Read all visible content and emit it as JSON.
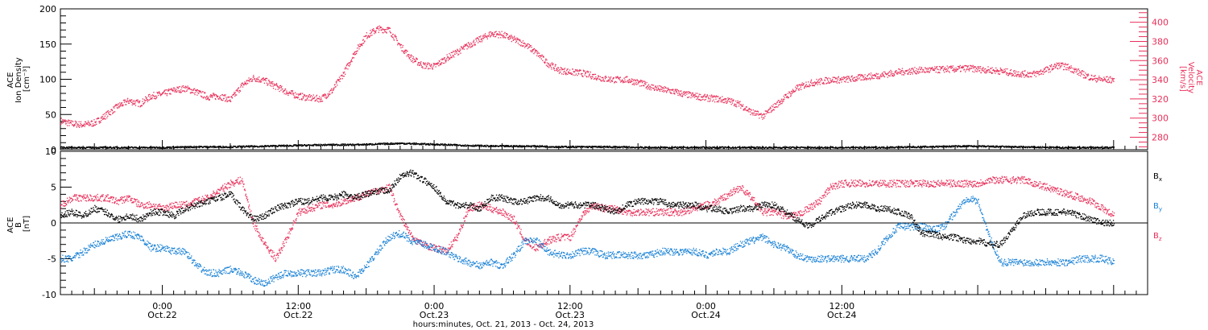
{
  "chart_data": [
    {
      "type": "scatter",
      "panel": "top",
      "ylabel_left": [
        "ACE",
        "Ion Density",
        "[cm⁻³]"
      ],
      "ylabel_right": [
        "ACE",
        "Velocity",
        "[km/s]"
      ],
      "y_left_ticks": [
        "0",
        "50",
        "100",
        "150",
        "200"
      ],
      "y_left_range": [
        0,
        200
      ],
      "y_right_ticks": [
        "280",
        "300",
        "320",
        "340",
        "360",
        "380",
        "400"
      ],
      "y_right_range": [
        267,
        414
      ],
      "x_range_hours": [
        0,
        96
      ],
      "colors": {
        "density": "#000000",
        "velocity": "#e8305a"
      },
      "series": [
        {
          "axis": "left",
          "color": "#000000",
          "x_hours": [
            0,
            3,
            6,
            9,
            12,
            15,
            18,
            21,
            24,
            26,
            28,
            30,
            32,
            34,
            36,
            38,
            40,
            42,
            44,
            46,
            48,
            52,
            56,
            60,
            64,
            68,
            72,
            76,
            80,
            84,
            88,
            92,
            93
          ],
          "values": [
            3,
            3,
            3,
            3,
            4,
            4,
            5,
            6,
            7,
            7,
            8,
            9,
            8,
            7,
            6,
            5,
            5,
            5,
            4,
            4,
            4,
            3,
            3,
            3,
            3,
            3,
            3,
            4,
            5,
            4,
            3,
            3,
            3
          ]
        },
        {
          "axis": "right",
          "color": "#e8305a",
          "x_hours": [
            0,
            1,
            2,
            3,
            4,
            5,
            6,
            7,
            8,
            9,
            10,
            11,
            12,
            13,
            14,
            15,
            16,
            17,
            18,
            19,
            20,
            21,
            22,
            23,
            24,
            25,
            26,
            27,
            28,
            29,
            30,
            31,
            32,
            33,
            34,
            35,
            36,
            37,
            38,
            39,
            40,
            41,
            42,
            43,
            44,
            45,
            46,
            47,
            48,
            49,
            50,
            51,
            52,
            53,
            54,
            55,
            56,
            57,
            58,
            59,
            60,
            61,
            62,
            63,
            64,
            65,
            66,
            67,
            68,
            69,
            70,
            71,
            72,
            73,
            74,
            75,
            76,
            77,
            78,
            79,
            80,
            81,
            82,
            83,
            84,
            85,
            86,
            87,
            88,
            89,
            90,
            91,
            92,
            93
          ],
          "values": [
            297,
            294,
            293,
            295,
            303,
            312,
            318,
            315,
            323,
            325,
            329,
            331,
            327,
            322,
            323,
            319,
            334,
            342,
            339,
            333,
            327,
            323,
            321,
            320,
            329,
            347,
            369,
            386,
            393,
            392,
            375,
            362,
            355,
            354,
            362,
            369,
            376,
            382,
            388,
            387,
            382,
            377,
            368,
            357,
            350,
            348,
            347,
            344,
            341,
            340,
            340,
            337,
            333,
            330,
            328,
            325,
            323,
            321,
            320,
            318,
            314,
            306,
            302,
            312,
            322,
            331,
            336,
            338,
            340,
            340,
            341,
            343,
            344,
            346,
            348,
            349,
            350,
            350,
            351,
            351,
            352,
            351,
            350,
            349,
            347,
            346,
            346,
            350,
            355,
            353,
            347,
            342,
            340,
            340
          ]
        }
      ]
    },
    {
      "type": "scatter",
      "panel": "bottom",
      "ylabel": [
        "ACE",
        "B",
        "[nT]"
      ],
      "y_ticks": [
        "-10",
        "-5",
        "0",
        "5",
        "10"
      ],
      "y_range": [
        -10,
        10
      ],
      "x_range_hours": [
        0,
        96
      ],
      "zero_line": true,
      "x_ticks": [
        {
          "hours": 9,
          "time": "0:00",
          "date": "Oct.22"
        },
        {
          "hours": 21,
          "time": "12:00",
          "date": "Oct.22"
        },
        {
          "hours": 33,
          "time": "0:00",
          "date": "Oct.23"
        },
        {
          "hours": 45,
          "time": "12:00",
          "date": "Oct.23"
        },
        {
          "hours": 57,
          "time": "0:00",
          "date": "Oct.24"
        },
        {
          "hours": 69,
          "time": "12:00",
          "date": "Oct.24"
        }
      ],
      "xlabel": "hours:minutes, Oct. 21, 2013 - Oct. 24, 2013",
      "legend": [
        {
          "base": "B",
          "sub": "x",
          "color": "#000000"
        },
        {
          "base": "B",
          "sub": "y",
          "color": "#1a82d6"
        },
        {
          "base": "B",
          "sub": "z",
          "color": "#e8305a"
        }
      ],
      "series": [
        {
          "name": "Bx",
          "color": "#000000",
          "x_hours": [
            0,
            1,
            2,
            3,
            4,
            5,
            6,
            7,
            8,
            9,
            10,
            11,
            12,
            13,
            14,
            15,
            16,
            17,
            18,
            19,
            20,
            21,
            22,
            23,
            24,
            25,
            26,
            27,
            28,
            29,
            30,
            31,
            32,
            33,
            34,
            35,
            36,
            37,
            38,
            39,
            40,
            41,
            42,
            43,
            44,
            45,
            46,
            47,
            48,
            49,
            50,
            51,
            52,
            53,
            54,
            55,
            56,
            57,
            58,
            59,
            60,
            61,
            62,
            63,
            64,
            65,
            66,
            67,
            68,
            69,
            70,
            71,
            72,
            73,
            74,
            75,
            76,
            77,
            78,
            79,
            80,
            81,
            82,
            83,
            84,
            85,
            86,
            87,
            88,
            89,
            90,
            91,
            92,
            93
          ],
          "values": [
            1.0,
            1.5,
            1.0,
            2.0,
            1.5,
            0.5,
            1.0,
            0.5,
            1.5,
            1.5,
            1.0,
            2.0,
            2.5,
            3.0,
            3.5,
            4.0,
            2.0,
            0.5,
            1.0,
            2.0,
            2.5,
            3.0,
            3.0,
            3.5,
            3.5,
            4.0,
            3.5,
            4.0,
            4.5,
            4.5,
            6.5,
            7.0,
            6.0,
            5.0,
            3.0,
            2.5,
            2.5,
            2.0,
            3.5,
            3.5,
            3.0,
            3.0,
            3.5,
            3.5,
            2.5,
            2.5,
            2.5,
            2.5,
            2.0,
            1.5,
            2.5,
            3.0,
            3.0,
            3.0,
            2.5,
            2.5,
            2.5,
            2.0,
            2.0,
            1.5,
            2.0,
            2.0,
            2.5,
            2.5,
            1.5,
            0.5,
            -0.5,
            0.5,
            1.5,
            2.0,
            2.5,
            2.5,
            2.0,
            2.0,
            1.5,
            1.0,
            -1.5,
            -1.5,
            -2.0,
            -2.0,
            -2.5,
            -2.5,
            -3.0,
            -3.0,
            -1.0,
            1.0,
            1.5,
            1.5,
            1.5,
            1.5,
            1.0,
            0.5,
            0.0,
            0.0
          ]
        },
        {
          "name": "By",
          "color": "#1a82d6",
          "x_hours": [
            0,
            1,
            2,
            3,
            4,
            5,
            6,
            7,
            8,
            9,
            10,
            11,
            12,
            13,
            14,
            15,
            16,
            17,
            18,
            19,
            20,
            21,
            22,
            23,
            24,
            25,
            26,
            27,
            28,
            29,
            30,
            31,
            32,
            33,
            34,
            35,
            36,
            37,
            38,
            39,
            40,
            41,
            42,
            43,
            44,
            45,
            46,
            47,
            48,
            49,
            50,
            51,
            52,
            53,
            54,
            55,
            56,
            57,
            58,
            59,
            60,
            61,
            62,
            63,
            64,
            65,
            66,
            67,
            68,
            69,
            70,
            71,
            72,
            73,
            74,
            75,
            76,
            77,
            78,
            79,
            80,
            81,
            82,
            83,
            84,
            85,
            86,
            87,
            88,
            89,
            90,
            91,
            92,
            93
          ],
          "values": [
            -5.0,
            -5.0,
            -4.0,
            -3.0,
            -2.5,
            -2.0,
            -1.5,
            -2.0,
            -3.5,
            -3.5,
            -4.0,
            -4.0,
            -6.0,
            -7.0,
            -7.0,
            -6.5,
            -7.0,
            -8.0,
            -8.5,
            -7.5,
            -7.0,
            -7.0,
            -7.0,
            -7.0,
            -6.5,
            -6.5,
            -7.5,
            -6.0,
            -4.0,
            -2.0,
            -1.5,
            -2.5,
            -3.0,
            -3.5,
            -4.0,
            -5.0,
            -5.5,
            -6.0,
            -5.5,
            -6.0,
            -4.5,
            -2.5,
            -2.5,
            -4.0,
            -4.5,
            -4.5,
            -4.0,
            -4.0,
            -4.5,
            -4.5,
            -4.5,
            -4.5,
            -4.5,
            -4.0,
            -4.0,
            -4.0,
            -4.0,
            -4.5,
            -4.0,
            -4.0,
            -3.0,
            -2.5,
            -2.0,
            -3.0,
            -3.5,
            -4.5,
            -5.0,
            -5.0,
            -5.0,
            -5.0,
            -5.0,
            -5.0,
            -4.0,
            -2.0,
            -0.5,
            -0.5,
            -0.5,
            -1.0,
            -0.5,
            1.5,
            3.5,
            3.0,
            -2.0,
            -5.5,
            -5.5,
            -5.5,
            -5.5,
            -5.5,
            -5.5,
            -5.5,
            -5.0,
            -5.0,
            -5.0,
            -5.5
          ]
        },
        {
          "name": "Bz",
          "color": "#e8305a",
          "x_hours": [
            0,
            1,
            2,
            3,
            4,
            5,
            6,
            7,
            8,
            9,
            10,
            11,
            12,
            13,
            14,
            15,
            16,
            17,
            18,
            19,
            20,
            21,
            22,
            23,
            24,
            25,
            26,
            27,
            28,
            29,
            30,
            31,
            32,
            33,
            34,
            35,
            36,
            37,
            38,
            39,
            40,
            41,
            42,
            43,
            44,
            45,
            46,
            47,
            48,
            49,
            50,
            51,
            52,
            53,
            54,
            55,
            56,
            57,
            58,
            59,
            60,
            61,
            62,
            63,
            64,
            65,
            66,
            67,
            68,
            69,
            70,
            71,
            72,
            73,
            74,
            75,
            76,
            77,
            78,
            79,
            80,
            81,
            82,
            83,
            84,
            85,
            86,
            87,
            88,
            89,
            90,
            91,
            92,
            93
          ],
          "values": [
            2.5,
            3.5,
            3.5,
            3.5,
            3.5,
            3.0,
            3.5,
            2.5,
            2.5,
            2.0,
            2.5,
            2.5,
            3.0,
            3.5,
            4.5,
            5.5,
            6.0,
            0.0,
            -3.0,
            -5.0,
            -2.0,
            1.5,
            2.0,
            2.5,
            2.5,
            3.0,
            3.5,
            4.0,
            4.5,
            5.0,
            1.0,
            -2.0,
            -3.0,
            -3.5,
            -4.0,
            -2.0,
            2.0,
            2.5,
            2.0,
            1.5,
            0.5,
            -2.5,
            -3.5,
            -2.5,
            -2.0,
            -2.0,
            1.0,
            2.5,
            2.0,
            2.0,
            1.5,
            1.5,
            1.5,
            1.5,
            1.5,
            1.5,
            2.0,
            2.5,
            3.0,
            4.0,
            5.0,
            3.5,
            1.5,
            1.5,
            1.0,
            1.0,
            2.0,
            3.0,
            5.0,
            5.5,
            5.5,
            5.5,
            5.5,
            5.5,
            5.5,
            5.5,
            5.5,
            5.5,
            5.5,
            5.5,
            5.5,
            5.5,
            6.0,
            6.0,
            6.0,
            6.0,
            5.5,
            5.0,
            4.5,
            4.0,
            3.5,
            3.0,
            2.0,
            1.0
          ]
        }
      ]
    }
  ]
}
